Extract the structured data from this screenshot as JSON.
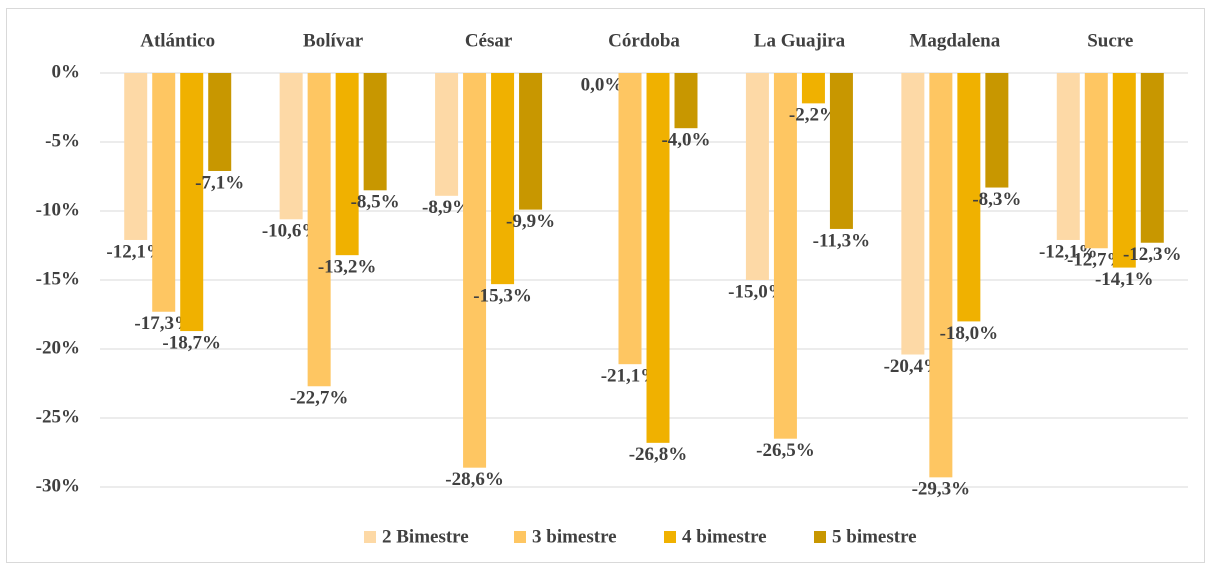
{
  "chart_data": {
    "type": "bar",
    "categories": [
      "Atlántico",
      "Bolívar",
      "César",
      "Córdoba",
      "La Guajira",
      "Magdalena",
      "Sucre"
    ],
    "series": [
      {
        "name": "2 Bimestre",
        "color": "#fdd9a6",
        "values": [
          -12.1,
          -10.6,
          -8.9,
          0.0,
          -15.0,
          -20.4,
          -12.1
        ],
        "value_labels": [
          "-12,1%",
          "-10,6%",
          "-8,9%",
          "0,0%",
          "-15,0%",
          "-20,4%",
          "-12,1%"
        ]
      },
      {
        "name": "3 bimestre",
        "color": "#fec662",
        "values": [
          -17.3,
          -22.7,
          -28.6,
          -21.1,
          -26.5,
          -29.3,
          -12.7
        ],
        "value_labels": [
          "-17,3%",
          "-22,7%",
          "-28,6%",
          "-21,1%",
          "-26,5%",
          "-29,3%",
          "-12,7%"
        ]
      },
      {
        "name": "4 bimestre",
        "color": "#f0b100",
        "values": [
          -18.7,
          -13.2,
          -15.3,
          -26.8,
          -2.2,
          -18.0,
          -14.1
        ],
        "value_labels": [
          "-18,7%",
          "-13,2%",
          "-15,3%",
          "-26,8%",
          "-2,2%",
          "-18,0%",
          "-14,1%"
        ]
      },
      {
        "name": "5 bimestre",
        "color": "#c89700",
        "values": [
          -7.1,
          -8.5,
          -9.9,
          -4.0,
          -11.3,
          -8.3,
          -12.3
        ],
        "value_labels": [
          "-7,1%",
          "-8,5%",
          "-9,9%",
          "-4,0%",
          "-11,3%",
          "-8,3%",
          "-12,3%"
        ]
      }
    ],
    "ylim": [
      -30,
      0
    ],
    "yticks": [
      {
        "value": 0,
        "label": "0%"
      },
      {
        "value": -5,
        "label": "-5%"
      },
      {
        "value": -10,
        "label": "-10%"
      },
      {
        "value": -15,
        "label": "-15%"
      },
      {
        "value": -20,
        "label": "-20%"
      },
      {
        "value": -25,
        "label": "-25%"
      },
      {
        "value": -30,
        "label": "-30%"
      }
    ],
    "grid": true,
    "legend": "bottom"
  }
}
